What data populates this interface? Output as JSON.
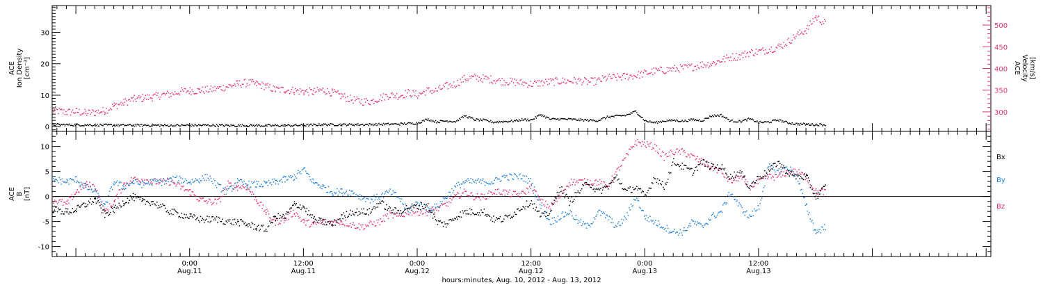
{
  "colors": {
    "black": "#000000",
    "pink": "#e8336b",
    "blue": "#1e7fe0"
  },
  "time_axis": {
    "label": "hours:minutes, Aug. 10, 2012 - Aug. 13, 2012",
    "range_hours": [
      -14.5,
      84.5
    ],
    "ticks": [
      {
        "h": 0,
        "line1": "0:00",
        "line2": "Aug.11"
      },
      {
        "h": 12,
        "line1": "12:00",
        "line2": "Aug.11"
      },
      {
        "h": 24,
        "line1": "0:00",
        "line2": "Aug.12"
      },
      {
        "h": 36,
        "line1": "12:00",
        "line2": "Aug.12"
      },
      {
        "h": 48,
        "line1": "0:00",
        "line2": "Aug.13"
      },
      {
        "h": 60,
        "line1": "12:00",
        "line2": "Aug.13"
      }
    ]
  },
  "chart_data": [
    {
      "type": "scatter",
      "panel": "plasma",
      "ylabel": [
        "ACE",
        "Ion Density",
        "[cm⁻³]"
      ],
      "ylim": [
        -1.5,
        38.5
      ],
      "yticks": [
        0,
        10,
        20,
        30
      ],
      "y2label": [
        "ACE",
        "Velocity",
        "[km/s]"
      ],
      "y2lim": [
        255,
        545
      ],
      "y2ticks": [
        300,
        350,
        400,
        450,
        500
      ],
      "series": [
        {
          "key": "density",
          "axis": "left",
          "color": "black",
          "x": [
            -14.5,
            -12,
            -10,
            -8,
            -6,
            -4,
            -2,
            0,
            2,
            4,
            6,
            8,
            10,
            12,
            14,
            16,
            18,
            20,
            22,
            24,
            25,
            26,
            27,
            28,
            29,
            30,
            31,
            32,
            33,
            34,
            35,
            36,
            37,
            38,
            39,
            40,
            41,
            42,
            43,
            44,
            45,
            46,
            47,
            48,
            49,
            50,
            51,
            52,
            53,
            54,
            55,
            56,
            57,
            58,
            59,
            60,
            61,
            62,
            63,
            64,
            65,
            66,
            67
          ],
          "y": [
            0.8,
            0.7,
            0.7,
            0.6,
            0.6,
            0.6,
            0.5,
            0.6,
            0.6,
            0.5,
            0.5,
            0.5,
            0.5,
            0.6,
            0.8,
            0.8,
            0.8,
            0.9,
            1.0,
            1.3,
            2.5,
            1.7,
            2.0,
            1.8,
            3.6,
            2.4,
            2.2,
            1.6,
            1.8,
            1.9,
            2.4,
            2.3,
            4.0,
            2.5,
            2.6,
            2.5,
            2.3,
            2.2,
            2.1,
            3.2,
            3.5,
            3.8,
            5.0,
            2.0,
            1.4,
            2.0,
            2.2,
            1.9,
            2.4,
            2.1,
            3.6,
            3.8,
            2.0,
            1.8,
            2.6,
            1.5,
            1.6,
            2.3,
            1.4,
            1.0,
            0.9,
            0.8,
            0.8
          ]
        },
        {
          "key": "velocity",
          "axis": "right",
          "color": "pink",
          "x": [
            -14.5,
            -13,
            -12,
            -11,
            -10,
            -9,
            -8,
            -7,
            -6,
            -5,
            -4,
            -3,
            -2,
            -1,
            0,
            1,
            2,
            3,
            4,
            5,
            6,
            7,
            8,
            9,
            10,
            11,
            12,
            13,
            14,
            15,
            16,
            17,
            18,
            19,
            20,
            21,
            22,
            23,
            24,
            25,
            26,
            27,
            28,
            29,
            30,
            31,
            32,
            33,
            34,
            35,
            36,
            37,
            38,
            39,
            40,
            41,
            42,
            43,
            44,
            45,
            46,
            47,
            48,
            49,
            50,
            51,
            52,
            53,
            54,
            55,
            56,
            57,
            58,
            59,
            60,
            61,
            62,
            63,
            64,
            65,
            66,
            67
          ],
          "y": [
            305,
            300,
            302,
            298,
            300,
            304,
            315,
            322,
            330,
            333,
            335,
            340,
            342,
            348,
            350,
            350,
            352,
            355,
            360,
            365,
            368,
            365,
            360,
            352,
            352,
            350,
            348,
            347,
            352,
            345,
            338,
            330,
            325,
            325,
            333,
            340,
            338,
            345,
            340,
            350,
            350,
            360,
            365,
            378,
            380,
            378,
            375,
            372,
            370,
            368,
            365,
            368,
            370,
            372,
            372,
            373,
            370,
            372,
            380,
            380,
            383,
            385,
            390,
            395,
            397,
            400,
            402,
            405,
            410,
            412,
            420,
            427,
            430,
            438,
            440,
            445,
            450,
            462,
            478,
            490,
            520,
            505
          ]
        }
      ]
    },
    {
      "type": "scatter",
      "panel": "magnetic_field",
      "ylabel": [
        "ACE",
        "B",
        "[nT]"
      ],
      "ylim": [
        -12,
        13
      ],
      "yticks": [
        -10,
        -5,
        0,
        5,
        10
      ],
      "zero_line": 0,
      "series": [
        {
          "name": "Bx",
          "color": "black",
          "x": [
            -14.5,
            -13,
            -12,
            -11,
            -10,
            -9,
            -8,
            -7,
            -6,
            -5,
            -4,
            -3,
            -2,
            -1,
            0,
            1,
            2,
            3,
            4,
            5,
            6,
            7,
            8,
            9,
            10,
            11,
            12,
            13,
            14,
            15,
            16,
            17,
            18,
            19,
            20,
            21,
            22,
            23,
            24,
            25,
            26,
            27,
            28,
            29,
            30,
            31,
            32,
            33,
            34,
            35,
            36,
            37,
            38,
            39,
            40,
            41,
            42,
            43,
            44,
            45,
            46,
            47,
            48,
            49,
            50,
            51,
            52,
            53,
            54,
            55,
            56,
            57,
            58,
            59,
            60,
            61,
            62,
            63,
            64,
            65,
            66,
            67
          ],
          "y": [
            -2.5,
            -3,
            -2.5,
            -1.5,
            -0.5,
            -3.5,
            -2.5,
            -1,
            0,
            -1,
            -1,
            -2,
            -3,
            -3.5,
            -4,
            -4.5,
            -4.5,
            -4.5,
            -5,
            -5,
            -5.5,
            -6,
            -6.5,
            -4,
            -4,
            -1.5,
            -2,
            -4.5,
            -5,
            -5.5,
            -4,
            -3,
            -3,
            -3,
            -1,
            -2.5,
            -3,
            -2,
            -2,
            -1.5,
            -5,
            -5.5,
            -4,
            -3,
            -3,
            -3,
            -4.5,
            -4.5,
            -3.5,
            -2,
            -1,
            -4,
            -3,
            2,
            -1,
            1,
            3,
            1,
            2,
            4,
            1,
            2,
            0,
            4,
            2,
            7,
            6,
            5,
            7,
            6,
            6,
            4,
            5,
            2,
            4,
            5,
            7,
            5,
            4,
            4,
            0,
            2
          ]
        },
        {
          "name": "By",
          "color": "blue",
          "x": [
            -14.5,
            -13,
            -12,
            -11,
            -10,
            -9,
            -8,
            -7,
            -6,
            -5,
            -4,
            -3,
            -2,
            -1,
            0,
            1,
            2,
            3,
            4,
            5,
            6,
            7,
            8,
            9,
            10,
            11,
            12,
            13,
            14,
            15,
            16,
            17,
            18,
            19,
            20,
            21,
            22,
            23,
            24,
            25,
            26,
            27,
            28,
            29,
            30,
            31,
            32,
            33,
            34,
            35,
            36,
            37,
            38,
            39,
            40,
            41,
            42,
            43,
            44,
            45,
            46,
            47,
            48,
            49,
            50,
            51,
            52,
            53,
            54,
            55,
            56,
            57,
            58,
            59,
            60,
            61,
            62,
            63,
            64,
            65,
            66,
            67
          ],
          "y": [
            3.5,
            3,
            3.5,
            2,
            1,
            -2,
            3,
            2,
            3,
            2.5,
            3,
            3,
            3.5,
            3.5,
            3,
            3.5,
            4,
            2,
            1,
            3,
            2.5,
            2.5,
            2.5,
            3,
            3.5,
            4,
            5.5,
            3,
            2,
            1,
            1,
            1,
            0,
            -0.5,
            0,
            1,
            0,
            -3,
            -1,
            -2.5,
            -2,
            0,
            2,
            3,
            3,
            3,
            3,
            4,
            4,
            4,
            3,
            -2,
            -5,
            -4,
            -3,
            -5,
            -6,
            -3,
            -4,
            -6,
            -4,
            0,
            -4,
            -5,
            -6,
            -7,
            -7,
            -5,
            -6,
            -4,
            -3,
            1,
            -2,
            -4,
            -2,
            6,
            5,
            6,
            4,
            -2,
            -7,
            -6
          ]
        },
        {
          "name": "Bz",
          "color": "pink",
          "x": [
            -14.5,
            -13,
            -12,
            -11,
            -10,
            -9,
            -8,
            -7,
            -6,
            -5,
            -4,
            -3,
            -2,
            -1,
            0,
            1,
            2,
            3,
            4,
            5,
            6,
            7,
            8,
            9,
            10,
            11,
            12,
            13,
            14,
            15,
            16,
            17,
            18,
            19,
            20,
            21,
            22,
            23,
            24,
            25,
            26,
            27,
            28,
            29,
            30,
            31,
            32,
            33,
            34,
            35,
            36,
            37,
            38,
            39,
            40,
            41,
            42,
            43,
            44,
            45,
            46,
            47,
            48,
            49,
            50,
            51,
            52,
            53,
            54,
            55,
            56,
            57,
            58,
            59,
            60,
            61,
            62,
            63,
            64,
            65,
            66,
            67
          ],
          "y": [
            -0.5,
            -1.5,
            1,
            2.5,
            2,
            -3,
            -1,
            2.5,
            3.5,
            3.5,
            3,
            3,
            3,
            2,
            1,
            -0.5,
            -1,
            -1,
            2.5,
            2,
            2,
            -0.5,
            -3,
            -5,
            -4.5,
            -3,
            -5,
            -5.5,
            -5,
            -5,
            -5,
            -5.5,
            -6,
            -5.5,
            -5,
            -3.5,
            -4,
            -3,
            -3,
            -3,
            -2.5,
            -1.5,
            0,
            1,
            0,
            0,
            1,
            1,
            0.5,
            0.5,
            2,
            -1,
            -2,
            0,
            3,
            3,
            3,
            3,
            2,
            5,
            8,
            11,
            10.5,
            10,
            8,
            9,
            9,
            8,
            7,
            6,
            5,
            3,
            4,
            2,
            3,
            4,
            4,
            5,
            5,
            4,
            1,
            1
          ]
        }
      ]
    }
  ]
}
